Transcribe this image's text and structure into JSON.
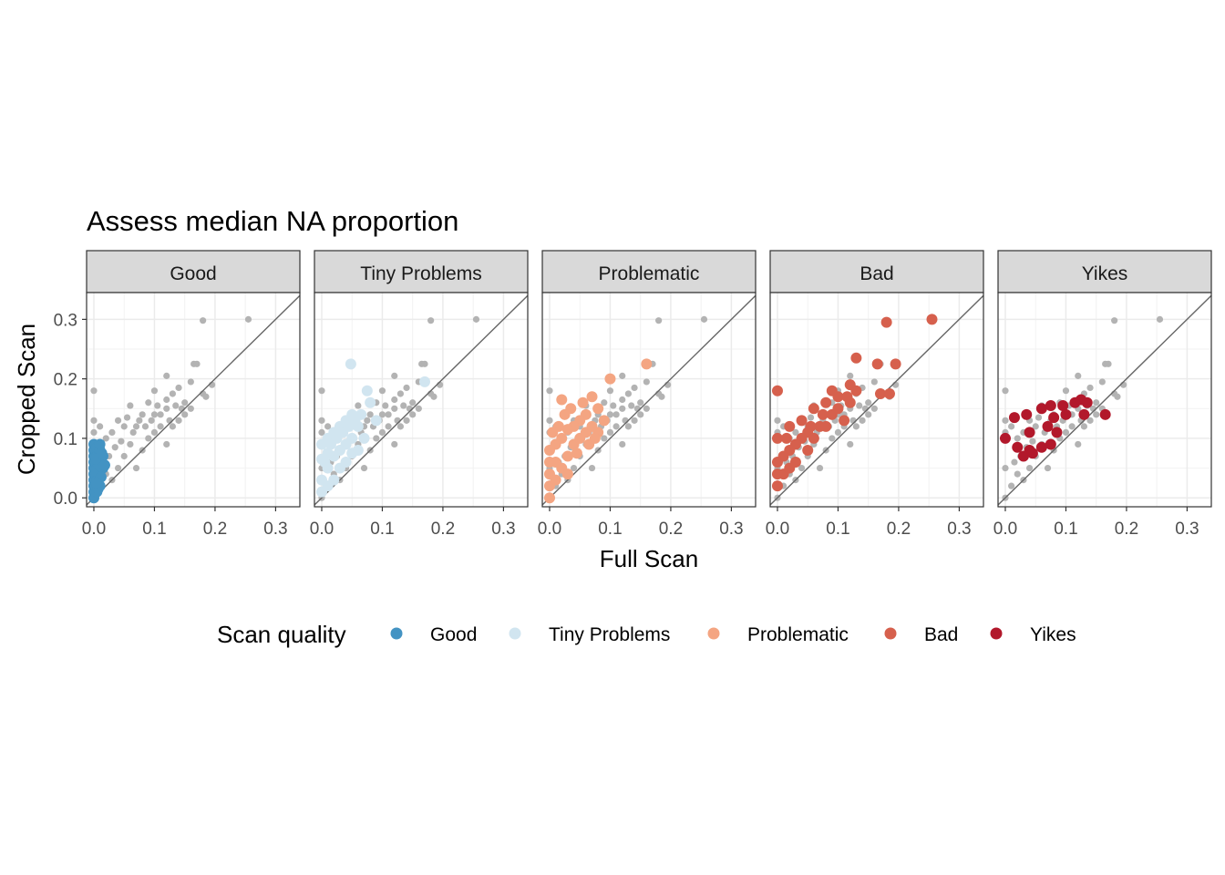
{
  "chart_data": {
    "type": "scatter",
    "title": "Assess median NA proportion",
    "xlabel": "Full Scan",
    "ylabel": "Cropped Scan",
    "xlim": [
      -0.012,
      0.34
    ],
    "ylim": [
      -0.015,
      0.345
    ],
    "x_ticks": [
      0.0,
      0.1,
      0.2,
      0.3
    ],
    "x_tick_labels": [
      "0.0",
      "0.1",
      "0.2",
      "0.3"
    ],
    "y_ticks": [
      0.0,
      0.1,
      0.2,
      0.3
    ],
    "y_tick_labels": [
      "0.0",
      "0.1",
      "0.2",
      "0.3"
    ],
    "grid": true,
    "reference_line": "y = x",
    "background_color": "#b3b3b3",
    "legend": {
      "title": "Scan quality",
      "position": "bottom",
      "entries": [
        {
          "label": "Good",
          "color": "#4393c3"
        },
        {
          "label": "Tiny Problems",
          "color": "#d1e5f0"
        },
        {
          "label": "Problematic",
          "color": "#f4a582"
        },
        {
          "label": "Bad",
          "color": "#d6604d"
        },
        {
          "label": "Yikes",
          "color": "#b2182b"
        }
      ]
    },
    "background_points": [
      [
        0.18,
        0.298
      ],
      [
        0.255,
        0.3
      ],
      [
        0.12,
        0.205
      ],
      [
        0.165,
        0.225
      ],
      [
        0.17,
        0.225
      ],
      [
        0.195,
        0.19
      ],
      [
        0.18,
        0.175
      ],
      [
        0.185,
        0.17
      ],
      [
        0.13,
        0.175
      ],
      [
        0.16,
        0.195
      ],
      [
        0.14,
        0.185
      ],
      [
        0.15,
        0.16
      ],
      [
        0.12,
        0.15
      ],
      [
        0.09,
        0.16
      ],
      [
        0.08,
        0.14
      ],
      [
        0.06,
        0.155
      ],
      [
        0.1,
        0.18
      ],
      [
        0.11,
        0.14
      ],
      [
        0.07,
        0.12
      ],
      [
        0.05,
        0.12
      ],
      [
        0.04,
        0.13
      ],
      [
        0.03,
        0.11
      ],
      [
        0.1,
        0.11
      ],
      [
        0.13,
        0.12
      ],
      [
        0.09,
        0.1
      ],
      [
        0.06,
        0.09
      ],
      [
        0.02,
        0.1
      ],
      [
        0.0,
        0.18
      ],
      [
        0.0,
        0.13
      ],
      [
        0.0,
        0.11
      ],
      [
        0.01,
        0.12
      ],
      [
        0.15,
        0.14
      ],
      [
        0.14,
        0.13
      ],
      [
        0.08,
        0.08
      ],
      [
        0.05,
        0.07
      ],
      [
        0.12,
        0.09
      ],
      [
        0.07,
        0.05
      ],
      [
        0.04,
        0.05
      ],
      [
        0.03,
        0.03
      ],
      [
        0.02,
        0.04
      ],
      [
        0.0,
        0.0
      ],
      [
        0.01,
        0.02
      ],
      [
        0.0,
        0.05
      ],
      [
        0.11,
        0.12
      ],
      [
        0.1,
        0.14
      ],
      [
        0.085,
        0.12
      ],
      [
        0.075,
        0.13
      ],
      [
        0.065,
        0.11
      ],
      [
        0.045,
        0.095
      ],
      [
        0.035,
        0.085
      ],
      [
        0.025,
        0.07
      ],
      [
        0.015,
        0.06
      ],
      [
        0.12,
        0.165
      ],
      [
        0.105,
        0.155
      ],
      [
        0.095,
        0.13
      ],
      [
        0.055,
        0.135
      ],
      [
        0.135,
        0.155
      ],
      [
        0.145,
        0.15
      ],
      [
        0.16,
        0.15
      ],
      [
        0.125,
        0.13
      ]
    ],
    "panels": [
      {
        "name": "Good",
        "color": "#4393c3",
        "points": [
          [
            0.0,
            0.0
          ],
          [
            0.0,
            0.01
          ],
          [
            0.0,
            0.02
          ],
          [
            0.0,
            0.03
          ],
          [
            0.0,
            0.04
          ],
          [
            0.0,
            0.05
          ],
          [
            0.0,
            0.06
          ],
          [
            0.0,
            0.07
          ],
          [
            0.0,
            0.08
          ],
          [
            0.0,
            0.09
          ],
          [
            0.005,
            0.01
          ],
          [
            0.005,
            0.03
          ],
          [
            0.005,
            0.05
          ],
          [
            0.005,
            0.07
          ],
          [
            0.005,
            0.085
          ],
          [
            0.01,
            0.02
          ],
          [
            0.01,
            0.04
          ],
          [
            0.01,
            0.06
          ],
          [
            0.01,
            0.08
          ],
          [
            0.01,
            0.09
          ],
          [
            0.015,
            0.05
          ],
          [
            0.015,
            0.07
          ],
          [
            0.002,
            0.045
          ],
          [
            0.008,
            0.055
          ],
          [
            0.012,
            0.035
          ],
          [
            0.003,
            0.065
          ],
          [
            0.007,
            0.015
          ],
          [
            0.018,
            0.055
          ],
          [
            0.013,
            0.075
          ],
          [
            0.004,
            0.025
          ]
        ]
      },
      {
        "name": "Tiny Problems",
        "color": "#d1e5f0",
        "points": [
          [
            0.048,
            0.225
          ],
          [
            0.17,
            0.195
          ],
          [
            0.075,
            0.18
          ],
          [
            0.08,
            0.16
          ],
          [
            0.09,
            0.13
          ],
          [
            0.05,
            0.14
          ],
          [
            0.04,
            0.13
          ],
          [
            0.06,
            0.12
          ],
          [
            0.03,
            0.12
          ],
          [
            0.02,
            0.11
          ],
          [
            0.01,
            0.1
          ],
          [
            0.0,
            0.09
          ],
          [
            0.05,
            0.1
          ],
          [
            0.04,
            0.09
          ],
          [
            0.03,
            0.08
          ],
          [
            0.07,
            0.1
          ],
          [
            0.02,
            0.07
          ],
          [
            0.01,
            0.05
          ],
          [
            0.0,
            0.03
          ],
          [
            0.0,
            0.01
          ],
          [
            0.01,
            0.02
          ],
          [
            0.02,
            0.03
          ],
          [
            0.03,
            0.05
          ],
          [
            0.04,
            0.06
          ],
          [
            0.05,
            0.075
          ],
          [
            0.06,
            0.08
          ],
          [
            0.015,
            0.09
          ],
          [
            0.025,
            0.1
          ],
          [
            0.035,
            0.11
          ],
          [
            0.045,
            0.12
          ],
          [
            0.005,
            0.06
          ],
          [
            0.055,
            0.13
          ],
          [
            0.065,
            0.14
          ],
          [
            0.01,
            0.075
          ],
          [
            0.0,
            0.065
          ]
        ]
      },
      {
        "name": "Problematic",
        "color": "#f4a582",
        "points": [
          [
            0.1,
            0.2
          ],
          [
            0.16,
            0.225
          ],
          [
            0.02,
            0.165
          ],
          [
            0.07,
            0.17
          ],
          [
            0.08,
            0.15
          ],
          [
            0.06,
            0.14
          ],
          [
            0.05,
            0.13
          ],
          [
            0.04,
            0.12
          ],
          [
            0.03,
            0.115
          ],
          [
            0.02,
            0.1
          ],
          [
            0.01,
            0.09
          ],
          [
            0.0,
            0.08
          ],
          [
            0.0,
            0.06
          ],
          [
            0.0,
            0.04
          ],
          [
            0.0,
            0.02
          ],
          [
            0.0,
            0.0
          ],
          [
            0.01,
            0.03
          ],
          [
            0.02,
            0.05
          ],
          [
            0.03,
            0.07
          ],
          [
            0.04,
            0.09
          ],
          [
            0.05,
            0.1
          ],
          [
            0.06,
            0.11
          ],
          [
            0.07,
            0.12
          ],
          [
            0.08,
            0.11
          ],
          [
            0.09,
            0.13
          ],
          [
            0.01,
            0.06
          ],
          [
            0.03,
            0.04
          ],
          [
            0.045,
            0.075
          ],
          [
            0.015,
            0.12
          ],
          [
            0.025,
            0.14
          ],
          [
            0.035,
            0.15
          ],
          [
            0.055,
            0.16
          ],
          [
            0.065,
            0.09
          ],
          [
            0.005,
            0.11
          ],
          [
            0.075,
            0.1
          ]
        ]
      },
      {
        "name": "Bad",
        "color": "#d6604d",
        "points": [
          [
            0.18,
            0.295
          ],
          [
            0.255,
            0.3
          ],
          [
            0.13,
            0.235
          ],
          [
            0.165,
            0.225
          ],
          [
            0.195,
            0.225
          ],
          [
            0.17,
            0.175
          ],
          [
            0.185,
            0.175
          ],
          [
            0.0,
            0.18
          ],
          [
            0.12,
            0.19
          ],
          [
            0.1,
            0.17
          ],
          [
            0.08,
            0.16
          ],
          [
            0.06,
            0.15
          ],
          [
            0.09,
            0.14
          ],
          [
            0.11,
            0.13
          ],
          [
            0.07,
            0.12
          ],
          [
            0.05,
            0.11
          ],
          [
            0.04,
            0.1
          ],
          [
            0.03,
            0.09
          ],
          [
            0.02,
            0.08
          ],
          [
            0.01,
            0.07
          ],
          [
            0.0,
            0.06
          ],
          [
            0.0,
            0.04
          ],
          [
            0.0,
            0.02
          ],
          [
            0.01,
            0.04
          ],
          [
            0.02,
            0.05
          ],
          [
            0.03,
            0.06
          ],
          [
            0.05,
            0.08
          ],
          [
            0.06,
            0.1
          ],
          [
            0.08,
            0.12
          ],
          [
            0.1,
            0.15
          ],
          [
            0.12,
            0.16
          ],
          [
            0.13,
            0.18
          ],
          [
            0.04,
            0.13
          ],
          [
            0.02,
            0.12
          ],
          [
            0.0,
            0.1
          ],
          [
            0.09,
            0.18
          ],
          [
            0.075,
            0.14
          ],
          [
            0.115,
            0.17
          ],
          [
            0.015,
            0.1
          ],
          [
            0.055,
            0.12
          ]
        ]
      },
      {
        "name": "Yikes",
        "color": "#b2182b",
        "points": [
          [
            0.0,
            0.1
          ],
          [
            0.015,
            0.135
          ],
          [
            0.035,
            0.14
          ],
          [
            0.06,
            0.15
          ],
          [
            0.075,
            0.155
          ],
          [
            0.095,
            0.155
          ],
          [
            0.115,
            0.16
          ],
          [
            0.125,
            0.165
          ],
          [
            0.135,
            0.16
          ],
          [
            0.08,
            0.135
          ],
          [
            0.07,
            0.12
          ],
          [
            0.04,
            0.11
          ],
          [
            0.085,
            0.11
          ],
          [
            0.13,
            0.14
          ],
          [
            0.165,
            0.14
          ],
          [
            0.02,
            0.085
          ],
          [
            0.04,
            0.08
          ],
          [
            0.03,
            0.07
          ],
          [
            0.06,
            0.085
          ],
          [
            0.075,
            0.09
          ],
          [
            0.1,
            0.14
          ],
          [
            0.045,
            0.075
          ]
        ]
      }
    ]
  }
}
